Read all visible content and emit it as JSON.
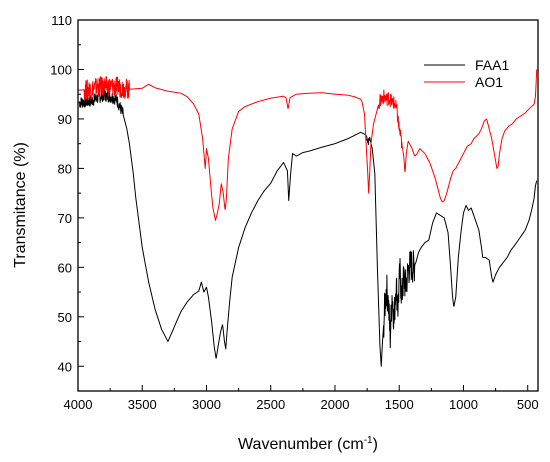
{
  "chart_data": {
    "type": "line",
    "xlabel": "Wavenumber (cm",
    "xlabel_sup": "-1",
    "xlabel_end": ")",
    "ylabel": "Transmitance (%)",
    "xlim": [
      4000,
      420
    ],
    "ylim": [
      35,
      110
    ],
    "x_reversed": true,
    "x_ticks": [
      4000,
      3500,
      3000,
      2500,
      2000,
      1500,
      1000,
      500
    ],
    "y_ticks": [
      40,
      50,
      60,
      70,
      80,
      90,
      100,
      110
    ],
    "grid": false,
    "legend_placement": "top-right",
    "series": [
      {
        "name": "FAA1",
        "color": "#000000",
        "points": [
          [
            4000,
            93.3
          ],
          [
            3900,
            93.6
          ],
          [
            3850,
            94.2
          ],
          [
            3800,
            94.8
          ],
          [
            3750,
            94.5
          ],
          [
            3700,
            94.0
          ],
          [
            3650,
            91.0
          ],
          [
            3620,
            88.0
          ],
          [
            3600,
            85.0
          ],
          [
            3570,
            79.0
          ],
          [
            3550,
            74.0
          ],
          [
            3520,
            68.0
          ],
          [
            3500,
            64.0
          ],
          [
            3450,
            57.0
          ],
          [
            3400,
            51.5
          ],
          [
            3350,
            47.5
          ],
          [
            3300,
            45.0
          ],
          [
            3250,
            48.0
          ],
          [
            3200,
            51.0
          ],
          [
            3150,
            53.0
          ],
          [
            3100,
            54.5
          ],
          [
            3060,
            55.2
          ],
          [
            3040,
            57.0
          ],
          [
            3020,
            55.0
          ],
          [
            3000,
            56.0
          ],
          [
            2985,
            54.0
          ],
          [
            2960,
            49.0
          ],
          [
            2940,
            44.0
          ],
          [
            2925,
            41.5
          ],
          [
            2910,
            44.0
          ],
          [
            2890,
            47.0
          ],
          [
            2875,
            48.5
          ],
          [
            2860,
            45.0
          ],
          [
            2850,
            43.5
          ],
          [
            2840,
            47.0
          ],
          [
            2820,
            53.0
          ],
          [
            2800,
            58.0
          ],
          [
            2750,
            64.0
          ],
          [
            2700,
            68.0
          ],
          [
            2650,
            71.0
          ],
          [
            2600,
            73.5
          ],
          [
            2550,
            75.5
          ],
          [
            2500,
            77.0
          ],
          [
            2450,
            79.5
          ],
          [
            2400,
            81.2
          ],
          [
            2370,
            79.5
          ],
          [
            2360,
            73.5
          ],
          [
            2345,
            79.0
          ],
          [
            2330,
            83.0
          ],
          [
            2300,
            82.5
          ],
          [
            2250,
            83.2
          ],
          [
            2200,
            83.5
          ],
          [
            2100,
            84.3
          ],
          [
            2000,
            85.0
          ],
          [
            1900,
            86.0
          ],
          [
            1800,
            87.3
          ],
          [
            1760,
            86.8
          ],
          [
            1745,
            85.0
          ],
          [
            1730,
            86.0
          ],
          [
            1710,
            84.0
          ],
          [
            1690,
            79.0
          ],
          [
            1670,
            60.0
          ],
          [
            1650,
            44.0
          ],
          [
            1640,
            40.0
          ],
          [
            1630,
            45.0
          ],
          [
            1615,
            51.0
          ],
          [
            1600,
            56.0
          ],
          [
            1585,
            53.0
          ],
          [
            1570,
            46.0
          ],
          [
            1555,
            55.0
          ],
          [
            1540,
            49.0
          ],
          [
            1525,
            57.0
          ],
          [
            1510,
            52.0
          ],
          [
            1495,
            59.0
          ],
          [
            1480,
            54.0
          ],
          [
            1465,
            58.0
          ],
          [
            1450,
            56.0
          ],
          [
            1430,
            59.5
          ],
          [
            1410,
            60.5
          ],
          [
            1390,
            60.0
          ],
          [
            1370,
            61.0
          ],
          [
            1350,
            63.0
          ],
          [
            1330,
            64.0
          ],
          [
            1300,
            65.0
          ],
          [
            1270,
            65.5
          ],
          [
            1240,
            69.0
          ],
          [
            1210,
            71.0
          ],
          [
            1180,
            70.5
          ],
          [
            1150,
            70.0
          ],
          [
            1120,
            67.0
          ],
          [
            1100,
            60.0
          ],
          [
            1085,
            54.0
          ],
          [
            1075,
            52.0
          ],
          [
            1060,
            54.0
          ],
          [
            1040,
            62.0
          ],
          [
            1020,
            67.0
          ],
          [
            1000,
            71.0
          ],
          [
            980,
            72.5
          ],
          [
            960,
            71.5
          ],
          [
            940,
            72.0
          ],
          [
            920,
            70.5
          ],
          [
            900,
            69.0
          ],
          [
            880,
            67.5
          ],
          [
            860,
            64.0
          ],
          [
            850,
            62.0
          ],
          [
            830,
            62.0
          ],
          [
            800,
            61.5
          ],
          [
            780,
            58.0
          ],
          [
            770,
            57.0
          ],
          [
            750,
            58.5
          ],
          [
            720,
            60.0
          ],
          [
            690,
            61.0
          ],
          [
            660,
            62.0
          ],
          [
            630,
            63.5
          ],
          [
            600,
            64.5
          ],
          [
            560,
            66.0
          ],
          [
            520,
            67.5
          ],
          [
            490,
            69.5
          ],
          [
            470,
            71.5
          ],
          [
            450,
            74.0
          ],
          [
            440,
            76.5
          ],
          [
            430,
            77.5
          ]
        ]
      },
      {
        "name": "AO1",
        "color": "#ff0000",
        "points": [
          [
            4000,
            95.8
          ],
          [
            3900,
            96.0
          ],
          [
            3850,
            96.5
          ],
          [
            3800,
            96.6
          ],
          [
            3700,
            96.5
          ],
          [
            3600,
            96.0
          ],
          [
            3500,
            96.2
          ],
          [
            3450,
            97.0
          ],
          [
            3400,
            96.3
          ],
          [
            3300,
            95.6
          ],
          [
            3200,
            95.2
          ],
          [
            3150,
            94.5
          ],
          [
            3100,
            93.0
          ],
          [
            3060,
            91.0
          ],
          [
            3030,
            86.0
          ],
          [
            3010,
            80.0
          ],
          [
            3000,
            84.0
          ],
          [
            2985,
            82.0
          ],
          [
            2965,
            76.0
          ],
          [
            2950,
            72.0
          ],
          [
            2930,
            69.5
          ],
          [
            2915,
            71.0
          ],
          [
            2900,
            73.0
          ],
          [
            2885,
            77.0
          ],
          [
            2870,
            75.0
          ],
          [
            2855,
            71.5
          ],
          [
            2845,
            74.0
          ],
          [
            2830,
            82.0
          ],
          [
            2800,
            88.0
          ],
          [
            2750,
            91.5
          ],
          [
            2700,
            92.5
          ],
          [
            2600,
            93.5
          ],
          [
            2500,
            94.2
          ],
          [
            2400,
            94.6
          ],
          [
            2380,
            94.2
          ],
          [
            2365,
            92.0
          ],
          [
            2350,
            94.3
          ],
          [
            2300,
            95.0
          ],
          [
            2200,
            95.2
          ],
          [
            2100,
            95.3
          ],
          [
            2000,
            95.0
          ],
          [
            1900,
            94.8
          ],
          [
            1850,
            94.5
          ],
          [
            1800,
            94.0
          ],
          [
            1790,
            93.5
          ],
          [
            1770,
            91.0
          ],
          [
            1760,
            86.0
          ],
          [
            1745,
            79.0
          ],
          [
            1738,
            75.0
          ],
          [
            1730,
            79.0
          ],
          [
            1720,
            85.0
          ],
          [
            1700,
            89.0
          ],
          [
            1680,
            91.0
          ],
          [
            1660,
            93.0
          ],
          [
            1640,
            94.0
          ],
          [
            1620,
            94.5
          ],
          [
            1600,
            94.0
          ],
          [
            1580,
            94.3
          ],
          [
            1560,
            93.5
          ],
          [
            1540,
            93.2
          ],
          [
            1520,
            92.0
          ],
          [
            1500,
            88.0
          ],
          [
            1480,
            85.0
          ],
          [
            1465,
            82.5
          ],
          [
            1455,
            79.0
          ],
          [
            1445,
            83.0
          ],
          [
            1430,
            85.5
          ],
          [
            1400,
            84.0
          ],
          [
            1380,
            82.5
          ],
          [
            1360,
            83.0
          ],
          [
            1340,
            84.0
          ],
          [
            1300,
            83.0
          ],
          [
            1260,
            81.0
          ],
          [
            1240,
            79.5
          ],
          [
            1220,
            78.0
          ],
          [
            1200,
            76.0
          ],
          [
            1180,
            74.0
          ],
          [
            1165,
            73.2
          ],
          [
            1150,
            73.5
          ],
          [
            1130,
            75.0
          ],
          [
            1100,
            78.0
          ],
          [
            1080,
            79.5
          ],
          [
            1060,
            80.0
          ],
          [
            1040,
            81.0
          ],
          [
            1000,
            83.0
          ],
          [
            970,
            84.5
          ],
          [
            940,
            85.0
          ],
          [
            920,
            86.0
          ],
          [
            900,
            86.5
          ],
          [
            880,
            87.0
          ],
          [
            860,
            88.0
          ],
          [
            840,
            89.5
          ],
          [
            820,
            90.0
          ],
          [
            800,
            88.0
          ],
          [
            780,
            86.0
          ],
          [
            760,
            83.0
          ],
          [
            740,
            80.0
          ],
          [
            730,
            80.5
          ],
          [
            720,
            83.0
          ],
          [
            700,
            86.0
          ],
          [
            680,
            87.5
          ],
          [
            650,
            88.5
          ],
          [
            620,
            89.0
          ],
          [
            590,
            90.0
          ],
          [
            560,
            90.5
          ],
          [
            520,
            91.2
          ],
          [
            490,
            92.0
          ],
          [
            470,
            92.5
          ],
          [
            450,
            93.0
          ],
          [
            440,
            94.5
          ],
          [
            435,
            97.0
          ],
          [
            430,
            100.0
          ]
        ]
      }
    ]
  }
}
